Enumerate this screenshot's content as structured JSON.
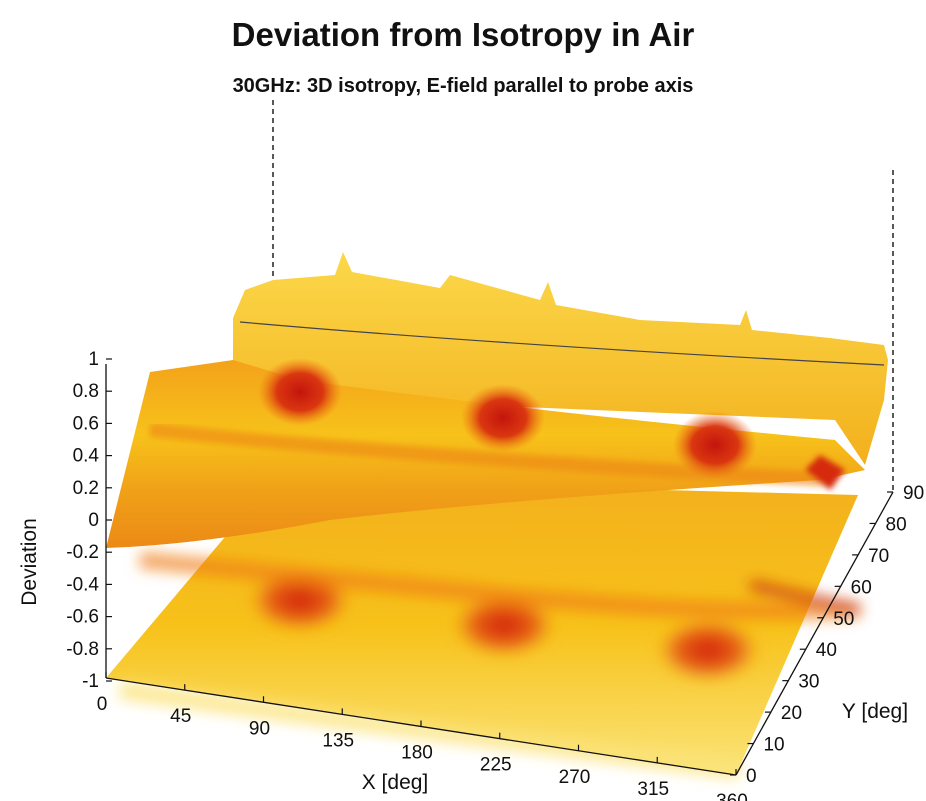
{
  "title": "Deviation from Isotropy in Air",
  "subtitle": "30GHz: 3D isotropy, E-field parallel to probe axis",
  "colors": {
    "high": "#c4140e",
    "mid": "#ec6a10",
    "low": "#f7c21a",
    "pale": "#fbe47a"
  },
  "chart_data": {
    "type": "surface",
    "title": "Deviation from Isotropy in Air",
    "subtitle": "30GHz: 3D isotropy, E-field parallel to probe axis",
    "xlabel": "X [deg]",
    "ylabel": "Y [deg]",
    "zlabel": "Deviation",
    "x_ticks": [
      "0",
      "45",
      "90",
      "135",
      "180",
      "225",
      "270",
      "315",
      "360"
    ],
    "y_ticks": [
      "0",
      "10",
      "20",
      "30",
      "40",
      "50",
      "60",
      "70",
      "80",
      "90"
    ],
    "z_ticks": [
      "-1",
      "-0.8",
      "-0.6",
      "-0.4",
      "-0.2",
      "0",
      "0.2",
      "0.4",
      "0.6",
      "0.8",
      "1"
    ],
    "xlim": [
      0,
      360
    ],
    "ylim": [
      0,
      90
    ],
    "zlim": [
      -1,
      1
    ],
    "grid": false,
    "colormap": "hot",
    "surface_level": 0.3,
    "peaks": [
      {
        "x": 90,
        "y": 45,
        "value": 0.55
      },
      {
        "x": 180,
        "y": 45,
        "value": 0.55
      },
      {
        "x": 270,
        "y": 45,
        "value": 0.55
      }
    ],
    "ridge_y": 85,
    "ridge_level": 0.6,
    "projection_level": -1
  }
}
